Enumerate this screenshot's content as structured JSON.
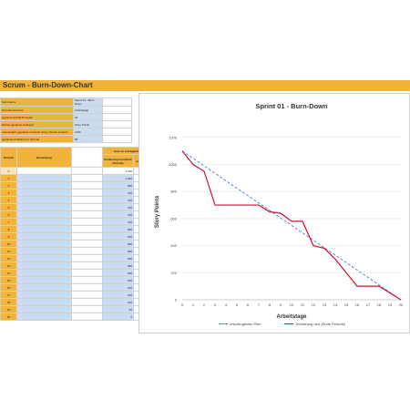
{
  "sheet": {
    "title": "Scrum - Burn-Down-Chart"
  },
  "info_rows": [
    {
      "label": "Sprintname",
      "value": "Sprint 01 - Burn-Down"
    },
    {
      "label": "Periodeneinheiten",
      "value": "Arbeitstage"
    },
    {
      "label": "geplante Anzahl Perioden",
      "value": "20"
    },
    {
      "label": "Einheit geplanter Aufwand",
      "value": "Story Points"
    },
    {
      "label": "ursprünglich geplanter Aufwand (Story Points) Gesamt",
      "value": "1100"
    },
    {
      "label": "geplanter Aufwand pro Periode",
      "value": "55"
    }
  ],
  "table": {
    "headers": {
      "period": "Periode",
      "remark": "Bemerkung",
      "group": "noch zu erledigender Aufwand",
      "estimate": "Schätzung neu (Ende Periode)",
      "plan": "ursprünglicher Plan"
    },
    "rows": [
      {
        "period": "0",
        "remark": "",
        "estimate": "1.100",
        "plan": "1100"
      },
      {
        "period": "1",
        "remark": "",
        "estimate": "1.000",
        "plan": "1045"
      },
      {
        "period": "2",
        "remark": "",
        "estimate": "950",
        "plan": "990"
      },
      {
        "period": "3",
        "remark": "",
        "estimate": "700",
        "plan": "935"
      },
      {
        "period": "4",
        "remark": "",
        "estimate": "700",
        "plan": "880"
      },
      {
        "period": "5",
        "remark": "",
        "estimate": "700",
        "plan": "825"
      },
      {
        "period": "6",
        "remark": "",
        "estimate": "700",
        "plan": "770"
      },
      {
        "period": "7",
        "remark": "",
        "estimate": "700",
        "plan": "715"
      },
      {
        "period": "8",
        "remark": "",
        "estimate": "650",
        "plan": "660"
      },
      {
        "period": "9",
        "remark": "",
        "estimate": "640",
        "plan": "605"
      },
      {
        "period": "10",
        "remark": "",
        "estimate": "580",
        "plan": "550"
      },
      {
        "period": "11",
        "remark": "",
        "estimate": "580",
        "plan": "495"
      },
      {
        "period": "12",
        "remark": "",
        "estimate": "400",
        "plan": "440"
      },
      {
        "period": "13",
        "remark": "",
        "estimate": "380",
        "plan": "385"
      },
      {
        "period": "14",
        "remark": "",
        "estimate": "300",
        "plan": "330"
      },
      {
        "period": "15",
        "remark": "",
        "estimate": "200",
        "plan": "275"
      },
      {
        "period": "16",
        "remark": "",
        "estimate": "100",
        "plan": "220"
      },
      {
        "period": "17",
        "remark": "",
        "estimate": "100",
        "plan": "165"
      },
      {
        "period": "18",
        "remark": "",
        "estimate": "100",
        "plan": "110"
      },
      {
        "period": "19",
        "remark": "",
        "estimate": "50",
        "plan": "55"
      },
      {
        "period": "20",
        "remark": "",
        "estimate": "0",
        "plan": "0"
      }
    ]
  },
  "chart_data": {
    "type": "line",
    "title": "Sprint 01 - Burn-Down",
    "xlabel": "Arbeitstage",
    "ylabel": "Story Points",
    "x": [
      0,
      1,
      2,
      3,
      4,
      5,
      6,
      7,
      8,
      9,
      10,
      11,
      12,
      13,
      14,
      15,
      16,
      17,
      18,
      19,
      20
    ],
    "ylim": [
      0,
      1300
    ],
    "yticks": [
      0,
      200,
      400,
      600,
      800,
      1000,
      1200
    ],
    "grid": true,
    "legend_position": "bottom",
    "series": [
      {
        "name": "ursprünglicher Plan",
        "style": "dashed",
        "color": "#4a7fd4",
        "values": [
          1100,
          1045,
          990,
          935,
          880,
          825,
          770,
          715,
          660,
          605,
          550,
          495,
          440,
          385,
          330,
          275,
          220,
          165,
          110,
          55,
          0
        ]
      },
      {
        "name": "Schätzung neu (Ende Periode)",
        "style": "solid",
        "color": "#cc1133",
        "values": [
          1100,
          1000,
          950,
          700,
          700,
          700,
          700,
          700,
          650,
          640,
          580,
          580,
          400,
          380,
          300,
          200,
          100,
          100,
          100,
          50,
          0
        ]
      }
    ]
  },
  "colors": {
    "accent": "#f2b33a",
    "cell_blue": "#c9dcf0",
    "plan_line": "#4a7fd4",
    "estimate_line": "#cc1133"
  }
}
